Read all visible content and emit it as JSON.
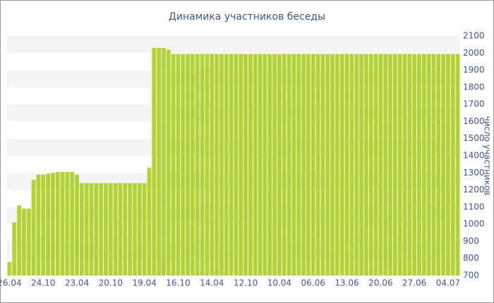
{
  "chart_data": {
    "type": "bar",
    "title": "Динамика участников беседы",
    "y_label": "число участников",
    "color": "#b2d235",
    "categories": [
      "26.04",
      null,
      null,
      null,
      null,
      null,
      null,
      "24.10",
      null,
      null,
      null,
      null,
      null,
      null,
      "23.04",
      null,
      null,
      null,
      null,
      null,
      null,
      "20.10",
      null,
      null,
      null,
      null,
      null,
      null,
      "19.04",
      null,
      null,
      null,
      null,
      null,
      null,
      "16.10",
      null,
      null,
      null,
      null,
      null,
      null,
      "14.04",
      null,
      null,
      null,
      null,
      null,
      null,
      "12.10",
      null,
      null,
      null,
      null,
      null,
      null,
      "10.04",
      null,
      null,
      null,
      null,
      null,
      null,
      "06.06",
      null,
      null,
      null,
      null,
      null,
      null,
      "13.06",
      null,
      null,
      null,
      null,
      null,
      null,
      "20.06",
      null,
      null,
      null,
      null,
      null,
      null,
      "27.06",
      null,
      null,
      null,
      null,
      null,
      null,
      "04.07",
      null,
      null
    ],
    "values": [
      780,
      1010,
      1110,
      1090,
      1090,
      1260,
      1290,
      1290,
      1295,
      1300,
      1305,
      1305,
      1305,
      1305,
      1290,
      1240,
      1240,
      1240,
      1240,
      1240,
      1240,
      1240,
      1240,
      1240,
      1240,
      1240,
      1240,
      1240,
      1240,
      1330,
      2030,
      2030,
      2030,
      2020,
      1995,
      1995,
      1995,
      1995,
      1995,
      1995,
      1995,
      1995,
      1995,
      1995,
      1995,
      1995,
      1995,
      1995,
      1995,
      1995,
      1995,
      1995,
      1995,
      1995,
      1995,
      1995,
      1995,
      1995,
      1995,
      1995,
      1995,
      1995,
      1995,
      1995,
      1995,
      1995,
      1995,
      1995,
      1995,
      1995,
      1995,
      1995,
      1995,
      1995,
      1995,
      1995,
      1995,
      1995,
      1995,
      1995,
      1995,
      1995,
      1995,
      1995,
      1995,
      1995,
      1995,
      1995,
      1995,
      1995,
      1995,
      1995,
      1995,
      1995
    ],
    "ylim": [
      700,
      2100
    ],
    "yticks": [
      700,
      800,
      900,
      1000,
      1100,
      1200,
      1300,
      1400,
      1500,
      1600,
      1700,
      1800,
      1900,
      2000,
      2100
    ],
    "grid": true
  }
}
